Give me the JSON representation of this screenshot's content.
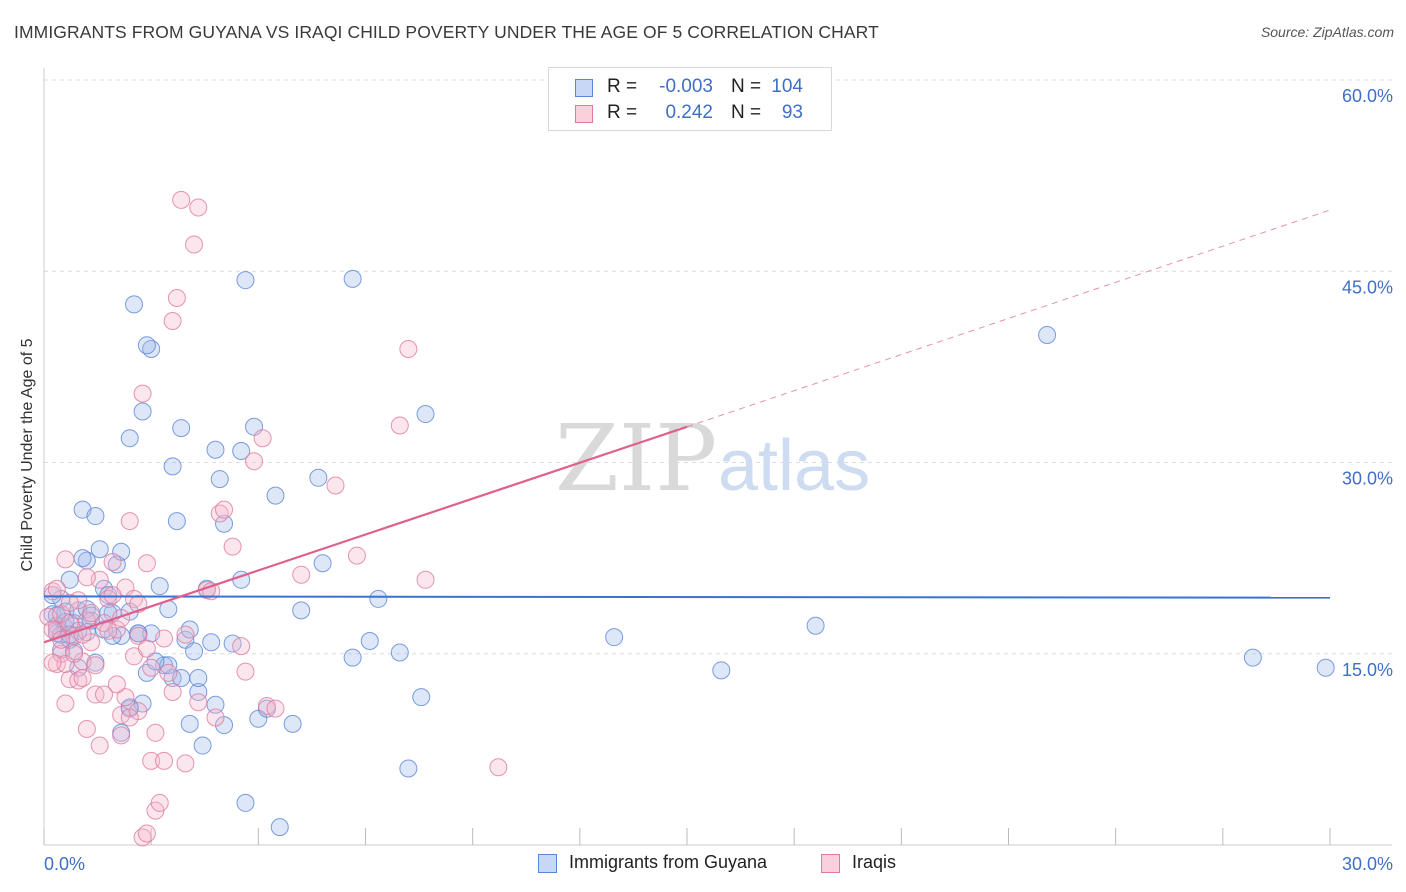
{
  "header": {
    "title": "IMMIGRANTS FROM GUYANA VS IRAQI CHILD POVERTY UNDER THE AGE OF 5 CORRELATION CHART",
    "source": "Source: ZipAtlas.com"
  },
  "watermark": {
    "part1": "ZIP",
    "part2": "atlas"
  },
  "legend": {
    "rows": [
      {
        "r_label": "R =",
        "r_value": "-0.003",
        "n_label": "N =",
        "n_value": "104",
        "color": "#9db9ec",
        "stroke": "#5b86d6"
      },
      {
        "r_label": "R =",
        "r_value": "0.242",
        "n_label": "N =",
        "n_value": "93",
        "color": "#f6b8cc",
        "stroke": "#e07a9d"
      }
    ]
  },
  "bottom_legend": {
    "items": [
      "Immigrants from Guyana",
      "Iraqis"
    ]
  },
  "chart_data": {
    "type": "scatter",
    "title": "IMMIGRANTS FROM GUYANA VS IRAQI CHILD POVERTY UNDER THE AGE OF 5 CORRELATION CHART",
    "xlabel": "",
    "ylabel": "Child Poverty Under the Age of 5",
    "xlim": [
      0,
      30
    ],
    "ylim": [
      0,
      60
    ],
    "x_tick_labels": [
      "0.0%",
      "30.0%"
    ],
    "y_tick_labels": [
      "15.0%",
      "30.0%",
      "45.0%",
      "60.0%"
    ],
    "y_ticks": [
      15,
      30,
      45,
      60
    ],
    "grid": true,
    "legend_position": "top-center",
    "series": [
      {
        "name": "Immigrants from Guyana",
        "color": "#9db9ec",
        "stroke": "#5b86d6",
        "trend": {
          "x": [
            0,
            30
          ],
          "y": [
            19.5,
            19.4
          ],
          "color": "#3a72d0"
        },
        "points": [
          [
            0.2,
            18.1
          ],
          [
            0.3,
            17.2
          ],
          [
            0.3,
            16.6
          ],
          [
            0.4,
            19.3
          ],
          [
            0.4,
            15.3
          ],
          [
            0.5,
            17.0
          ],
          [
            0.5,
            18.3
          ],
          [
            0.6,
            20.8
          ],
          [
            0.6,
            16.1
          ],
          [
            0.7,
            17.4
          ],
          [
            0.8,
            18.4
          ],
          [
            0.8,
            16.8
          ],
          [
            0.9,
            26.3
          ],
          [
            1.0,
            22.3
          ],
          [
            1.0,
            18.5
          ],
          [
            1.1,
            17.6
          ],
          [
            1.2,
            25.8
          ],
          [
            1.3,
            23.2
          ],
          [
            1.4,
            20.1
          ],
          [
            1.5,
            19.6
          ],
          [
            1.6,
            18.2
          ],
          [
            1.7,
            22.0
          ],
          [
            1.8,
            23.0
          ],
          [
            1.8,
            16.4
          ],
          [
            2.0,
            18.3
          ],
          [
            2.0,
            10.7
          ],
          [
            2.2,
            16.6
          ],
          [
            2.3,
            11.1
          ],
          [
            2.4,
            13.5
          ],
          [
            2.5,
            16.6
          ],
          [
            2.7,
            20.3
          ],
          [
            2.8,
            14.1
          ],
          [
            2.9,
            18.5
          ],
          [
            3.0,
            13.1
          ],
          [
            3.2,
            13.1
          ],
          [
            3.3,
            16.1
          ],
          [
            3.4,
            16.9
          ],
          [
            3.5,
            15.2
          ],
          [
            3.6,
            12.0
          ],
          [
            3.8,
            20.1
          ],
          [
            4.0,
            11.0
          ],
          [
            4.2,
            9.4
          ],
          [
            4.4,
            15.8
          ],
          [
            4.6,
            20.8
          ],
          [
            5.0,
            9.9
          ],
          [
            5.2,
            10.7
          ],
          [
            5.8,
            9.5
          ],
          [
            6.0,
            18.4
          ],
          [
            6.5,
            22.1
          ],
          [
            7.2,
            14.7
          ],
          [
            7.6,
            16.0
          ],
          [
            7.8,
            19.3
          ],
          [
            8.3,
            15.1
          ],
          [
            8.5,
            6.0
          ],
          [
            8.8,
            11.6
          ],
          [
            2.1,
            42.4
          ],
          [
            2.3,
            34.0
          ],
          [
            2.5,
            38.9
          ],
          [
            2.4,
            39.2
          ],
          [
            2.0,
            31.9
          ],
          [
            3.0,
            29.7
          ],
          [
            3.2,
            32.7
          ],
          [
            3.1,
            25.4
          ],
          [
            4.0,
            31.0
          ],
          [
            4.1,
            28.7
          ],
          [
            4.2,
            25.2
          ],
          [
            4.6,
            30.9
          ],
          [
            4.7,
            44.3
          ],
          [
            4.9,
            32.8
          ],
          [
            5.4,
            27.4
          ],
          [
            6.4,
            28.8
          ],
          [
            7.2,
            44.4
          ],
          [
            8.9,
            33.8
          ],
          [
            13.3,
            16.3
          ],
          [
            15.8,
            13.7
          ],
          [
            18.0,
            17.2
          ],
          [
            23.4,
            40.0
          ],
          [
            28.2,
            14.7
          ],
          [
            29.9,
            13.9
          ],
          [
            1.2,
            14.3
          ],
          [
            1.6,
            16.4
          ],
          [
            2.2,
            16.6
          ],
          [
            2.9,
            14.1
          ],
          [
            3.4,
            9.5
          ],
          [
            3.6,
            13.1
          ],
          [
            3.7,
            7.8
          ],
          [
            4.7,
            3.3
          ],
          [
            5.5,
            1.4
          ],
          [
            1.0,
            16.7
          ],
          [
            0.7,
            15.2
          ],
          [
            0.4,
            16.5
          ],
          [
            0.9,
            22.5
          ],
          [
            1.4,
            16.9
          ],
          [
            0.5,
            17.5
          ],
          [
            0.8,
            13.9
          ],
          [
            0.3,
            18.0
          ],
          [
            1.8,
            8.8
          ],
          [
            2.0,
            10.8
          ],
          [
            1.1,
            18.0
          ],
          [
            0.6,
            16.5
          ],
          [
            2.6,
            14.4
          ],
          [
            3.9,
            15.9
          ],
          [
            1.5,
            18.2
          ],
          [
            0.2,
            19.6
          ]
        ]
      },
      {
        "name": "Iraqis",
        "color": "#f6b8cc",
        "stroke": "#e07a9d",
        "trend": {
          "x": [
            0,
            15
          ],
          "y": [
            15.9,
            32.8
          ],
          "color": "#e05f8c",
          "dashed_to": [
            30,
            49.8
          ]
        },
        "points": [
          [
            0.1,
            17.9
          ],
          [
            0.2,
            19.9
          ],
          [
            0.3,
            16.9
          ],
          [
            0.3,
            14.2
          ],
          [
            0.4,
            18.1
          ],
          [
            0.4,
            15.0
          ],
          [
            0.5,
            22.4
          ],
          [
            0.5,
            11.1
          ],
          [
            0.6,
            17.4
          ],
          [
            0.6,
            13.0
          ],
          [
            0.7,
            16.4
          ],
          [
            0.8,
            19.2
          ],
          [
            0.8,
            12.9
          ],
          [
            0.9,
            14.4
          ],
          [
            1.0,
            9.1
          ],
          [
            1.0,
            17.6
          ],
          [
            1.1,
            15.9
          ],
          [
            1.2,
            11.8
          ],
          [
            1.3,
            7.8
          ],
          [
            1.3,
            20.8
          ],
          [
            1.4,
            17.4
          ],
          [
            1.5,
            19.3
          ],
          [
            1.6,
            22.2
          ],
          [
            1.7,
            16.9
          ],
          [
            1.8,
            10.2
          ],
          [
            1.9,
            11.6
          ],
          [
            1.9,
            20.2
          ],
          [
            2.0,
            25.4
          ],
          [
            2.1,
            14.8
          ],
          [
            2.2,
            16.4
          ],
          [
            2.2,
            10.5
          ],
          [
            2.3,
            35.4
          ],
          [
            2.4,
            22.1
          ],
          [
            2.5,
            13.9
          ],
          [
            2.5,
            6.6
          ],
          [
            2.6,
            2.7
          ],
          [
            2.7,
            3.3
          ],
          [
            2.8,
            16.2
          ],
          [
            2.9,
            13.5
          ],
          [
            3.0,
            41.1
          ],
          [
            3.1,
            42.9
          ],
          [
            3.2,
            50.6
          ],
          [
            3.3,
            6.4
          ],
          [
            3.5,
            47.1
          ],
          [
            3.6,
            50.0
          ],
          [
            3.8,
            20.0
          ],
          [
            3.9,
            19.9
          ],
          [
            4.0,
            10.0
          ],
          [
            4.1,
            26.0
          ],
          [
            4.4,
            23.4
          ],
          [
            4.6,
            15.6
          ],
          [
            4.7,
            13.6
          ],
          [
            4.9,
            30.1
          ],
          [
            5.1,
            31.9
          ],
          [
            5.2,
            10.9
          ],
          [
            5.4,
            10.7
          ],
          [
            6.0,
            21.2
          ],
          [
            6.8,
            28.2
          ],
          [
            7.3,
            22.7
          ],
          [
            8.3,
            32.9
          ],
          [
            8.5,
            38.9
          ],
          [
            8.9,
            20.8
          ],
          [
            10.6,
            6.1
          ],
          [
            0.2,
            16.9
          ],
          [
            0.5,
            14.2
          ],
          [
            0.7,
            15.0
          ],
          [
            0.9,
            16.5
          ],
          [
            1.1,
            18.2
          ],
          [
            1.2,
            14.1
          ],
          [
            1.4,
            11.8
          ],
          [
            1.6,
            19.6
          ],
          [
            1.7,
            12.6
          ],
          [
            1.8,
            17.8
          ],
          [
            2.0,
            10.0
          ],
          [
            2.1,
            19.3
          ],
          [
            2.2,
            18.9
          ],
          [
            2.4,
            15.4
          ],
          [
            2.6,
            8.8
          ],
          [
            2.8,
            6.6
          ],
          [
            3.0,
            12.0
          ],
          [
            3.3,
            16.5
          ],
          [
            3.6,
            11.2
          ],
          [
            4.2,
            26.3
          ],
          [
            0.3,
            20.1
          ],
          [
            0.4,
            16.1
          ],
          [
            0.6,
            19.0
          ],
          [
            0.9,
            13.1
          ],
          [
            1.0,
            21.0
          ],
          [
            1.5,
            16.8
          ],
          [
            1.8,
            8.6
          ],
          [
            2.3,
            0.6
          ],
          [
            2.4,
            0.9
          ],
          [
            0.2,
            14.3
          ]
        ]
      }
    ]
  }
}
